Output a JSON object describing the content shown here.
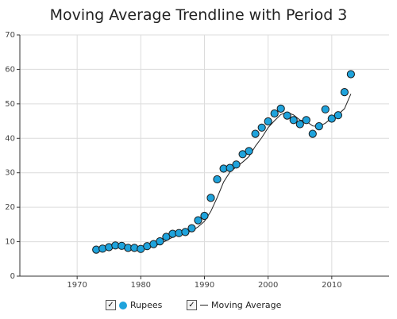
{
  "chart_data": {
    "type": "line",
    "title": "Moving Average Trendline with Period 3",
    "xlabel": "",
    "ylabel": "",
    "xlim": [
      1961,
      2019
    ],
    "ylim": [
      0,
      70
    ],
    "xticks": [
      1970,
      1980,
      1990,
      2000,
      2010
    ],
    "yticks": [
      0,
      10,
      20,
      30,
      40,
      50,
      60,
      70
    ],
    "grid": true,
    "legend_position": "bottom",
    "series": [
      {
        "name": "Rupees",
        "kind": "scatter",
        "color": "#1fa3dc",
        "x": [
          1973,
          1974,
          1975,
          1976,
          1977,
          1978,
          1979,
          1980,
          1981,
          1982,
          1983,
          1984,
          1985,
          1986,
          1987,
          1988,
          1989,
          1990,
          1991,
          1992,
          1993,
          1994,
          1995,
          1996,
          1997,
          1998,
          1999,
          2000,
          2001,
          2002,
          2003,
          2004,
          2005,
          2006,
          2007,
          2008,
          2009,
          2010,
          2011,
          2012,
          2013
        ],
        "y": [
          7.7,
          8.0,
          8.4,
          8.9,
          8.8,
          8.2,
          8.2,
          7.9,
          8.7,
          9.3,
          10.1,
          11.4,
          12.3,
          12.5,
          12.8,
          13.9,
          16.2,
          17.5,
          22.7,
          28.1,
          31.2,
          31.4,
          32.4,
          35.4,
          36.3,
          41.3,
          43.1,
          44.9,
          47.2,
          48.6,
          46.6,
          45.3,
          44.1,
          45.3,
          41.3,
          43.5,
          48.4,
          45.7,
          46.7,
          53.4,
          58.6
        ]
      },
      {
        "name": "Moving Average",
        "kind": "line",
        "color": "#222222",
        "x": [
          1975,
          1976,
          1977,
          1978,
          1979,
          1980,
          1981,
          1982,
          1983,
          1984,
          1985,
          1986,
          1987,
          1988,
          1989,
          1990,
          1991,
          1992,
          1993,
          1994,
          1995,
          1996,
          1997,
          1998,
          1999,
          2000,
          2001,
          2002,
          2003,
          2004,
          2005,
          2006,
          2007,
          2008,
          2009,
          2010,
          2011,
          2012,
          2013
        ],
        "y": [
          8.0,
          8.4,
          8.7,
          8.6,
          8.4,
          8.1,
          8.3,
          8.6,
          9.4,
          10.3,
          11.3,
          12.1,
          12.5,
          13.1,
          14.3,
          15.9,
          18.8,
          22.8,
          27.3,
          30.2,
          31.7,
          33.1,
          34.7,
          37.7,
          40.2,
          43.1,
          45.1,
          46.9,
          47.5,
          46.8,
          45.3,
          44.9,
          43.6,
          43.4,
          44.4,
          45.9,
          46.9,
          48.6,
          52.9
        ]
      }
    ]
  }
}
